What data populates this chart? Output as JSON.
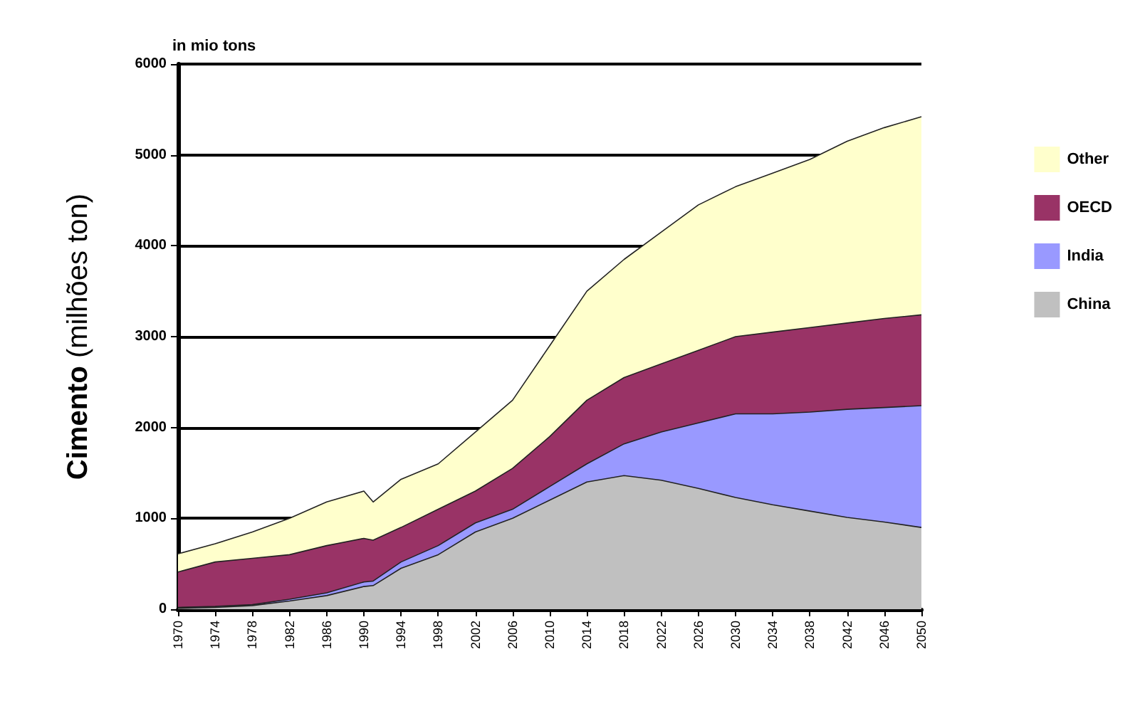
{
  "chart_data": {
    "type": "area",
    "title": "in mio tons",
    "ylabel": "Cimento (milhões ton)",
    "x": [
      1970,
      1974,
      1978,
      1982,
      1986,
      1990,
      1991,
      1994,
      1998,
      2002,
      2006,
      2010,
      2014,
      2018,
      2022,
      2026,
      2030,
      2034,
      2038,
      2042,
      2046,
      2050
    ],
    "series": [
      {
        "name": "China",
        "color": "#c0c0c0",
        "values": [
          10,
          20,
          40,
          90,
          150,
          250,
          260,
          450,
          600,
          850,
          1000,
          1200,
          1400,
          1470,
          1420,
          1330,
          1230,
          1150,
          1080,
          1010,
          960,
          900
        ]
      },
      {
        "name": "India",
        "color": "#9999ff",
        "values": [
          10,
          10,
          10,
          20,
          30,
          50,
          50,
          70,
          100,
          100,
          100,
          150,
          200,
          350,
          530,
          720,
          920,
          1000,
          1090,
          1190,
          1260,
          1340
        ]
      },
      {
        "name": "OECD",
        "color": "#993366",
        "values": [
          390,
          490,
          510,
          490,
          520,
          480,
          450,
          380,
          400,
          350,
          450,
          550,
          700,
          730,
          750,
          800,
          850,
          900,
          930,
          950,
          980,
          1000
        ]
      },
      {
        "name": "Other",
        "color": "#ffffcc",
        "values": [
          200,
          200,
          290,
          400,
          480,
          520,
          420,
          530,
          500,
          650,
          750,
          1000,
          1200,
          1300,
          1450,
          1600,
          1650,
          1750,
          1850,
          2000,
          2100,
          2180
        ]
      }
    ],
    "stacked": true,
    "xlim": [
      1970,
      2050
    ],
    "xticks": [
      1970,
      1974,
      1978,
      1982,
      1986,
      1990,
      1994,
      1998,
      2002,
      2006,
      2010,
      2014,
      2018,
      2022,
      2026,
      2030,
      2034,
      2038,
      2042,
      2046,
      2050
    ],
    "ylim": [
      0,
      6000
    ],
    "yticks": [
      0,
      1000,
      2000,
      3000,
      4000,
      5000,
      6000
    ],
    "grid": "y",
    "legend": "right",
    "marker": "none"
  }
}
